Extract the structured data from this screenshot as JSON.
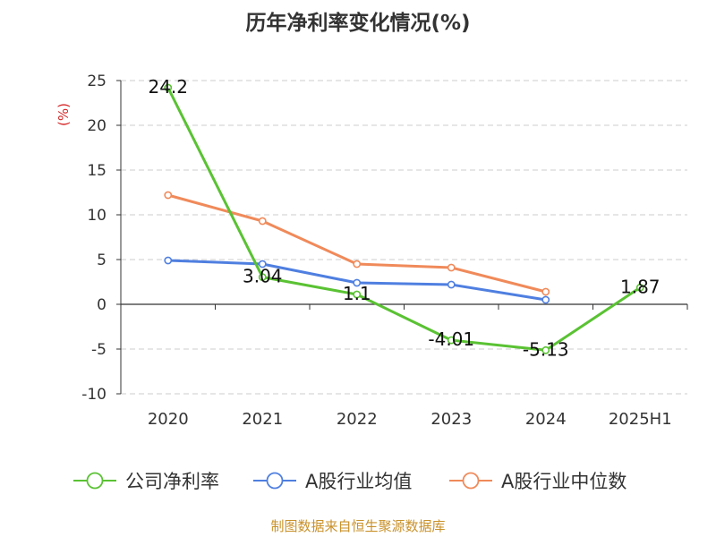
{
  "chart_data": {
    "type": "line",
    "title": "历年净利率变化情况(%)",
    "ylabel": "(%)",
    "xlabel": "",
    "categories": [
      "2020",
      "2021",
      "2022",
      "2023",
      "2024",
      "2025H1"
    ],
    "ylim": [
      -10,
      25
    ],
    "yticks": [
      25,
      20,
      15,
      10,
      5,
      0,
      -5,
      -10
    ],
    "grid": true,
    "legend_position": "bottom",
    "series": [
      {
        "name": "公司净利率",
        "color": "#5ac233",
        "values": [
          24.2,
          3.04,
          1.1,
          -4.01,
          -5.13,
          1.87
        ],
        "labels": [
          "24.2",
          "3.04",
          "1.1",
          "-4.01",
          "-5.13",
          "1.87"
        ]
      },
      {
        "name": "A股行业均值",
        "color": "#4f7fe0",
        "values": [
          4.9,
          4.5,
          2.4,
          2.2,
          0.5,
          null
        ]
      },
      {
        "name": "A股行业中位数",
        "color": "#f08a5a",
        "values": [
          12.2,
          9.3,
          4.5,
          4.1,
          1.4,
          null
        ]
      }
    ],
    "source": "制图数据来自恒生聚源数据库"
  }
}
